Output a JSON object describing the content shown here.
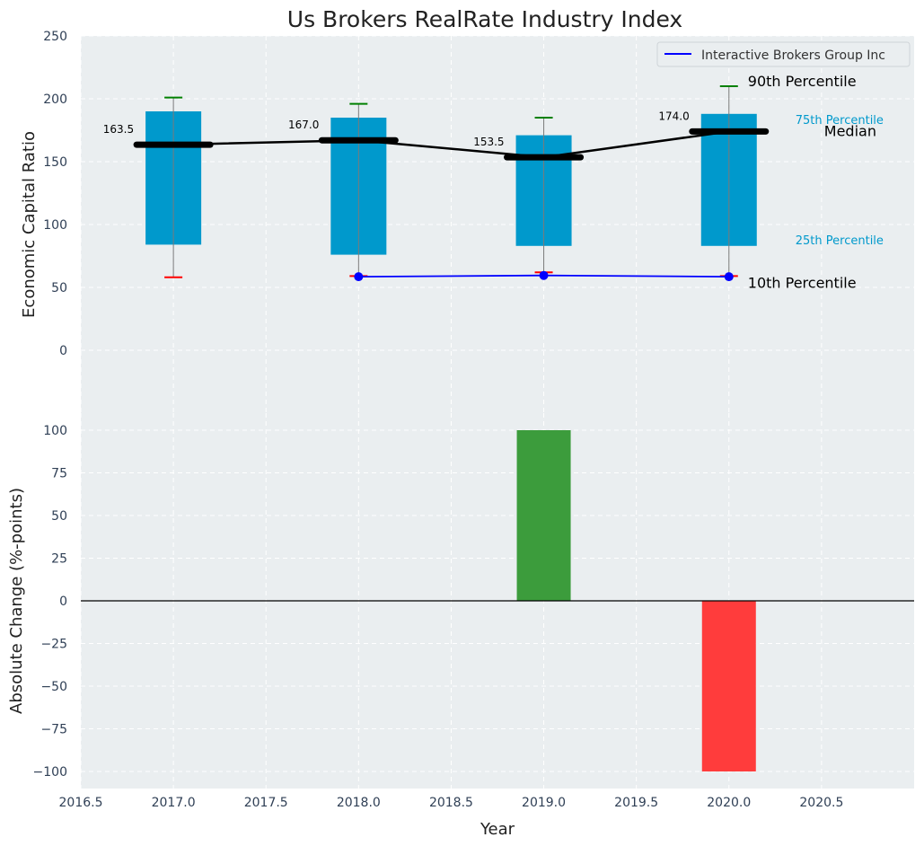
{
  "title": "Us Brokers RealRate Industry Index",
  "colors": {
    "panel_bg": "#eaeef0",
    "box": "#0099cc",
    "median": "#000000",
    "company": "#0000ff",
    "whisker_top": "#008000",
    "whisker_bottom": "#ff0000",
    "positive": "#3c9c3c",
    "negative": "#ff3c3c",
    "percentile_text": "#0099cc"
  },
  "chart_data": [
    {
      "type": "box",
      "ylabel": "Economic Capital Ratio",
      "ylim": [
        -50,
        250
      ],
      "yticks": [
        0,
        50,
        100,
        150,
        200,
        250
      ],
      "xlim": [
        2016.5,
        2021.0
      ],
      "grid": true,
      "legend_position": "top-right",
      "years": [
        2017,
        2018,
        2019,
        2020
      ],
      "p10": [
        58,
        59,
        62,
        59
      ],
      "p25": [
        84,
        76,
        83,
        83
      ],
      "median": [
        163.5,
        167.0,
        153.5,
        174.0
      ],
      "p75": [
        190,
        185,
        171,
        188
      ],
      "p90": [
        201,
        196,
        185,
        210
      ],
      "median_labels": [
        "163.5",
        "167.0",
        "153.5",
        "174.0"
      ],
      "company_series": {
        "name": "Interactive Brokers Group Inc",
        "x": [
          2018,
          2019,
          2020
        ],
        "y": [
          58.5,
          59.5,
          58.5
        ]
      },
      "annotations": {
        "p90": "90th Percentile",
        "p75": "75th Percentile",
        "median": "Median",
        "p25": "25th Percentile",
        "p10": "10th Percentile"
      }
    },
    {
      "type": "bar",
      "ylabel": "Absolute Change (%-points)",
      "xlabel": "Year",
      "ylim": [
        -110,
        110
      ],
      "yticks": [
        -100,
        -75,
        -50,
        -25,
        0,
        25,
        50,
        75,
        100
      ],
      "ytick_labels": [
        "−100",
        "−75",
        "−50",
        "−25",
        "0",
        "25",
        "50",
        "75",
        "100"
      ],
      "xlim": [
        2016.5,
        2021.0
      ],
      "xticks": [
        2016.5,
        2017.0,
        2017.5,
        2018.0,
        2018.5,
        2019.0,
        2019.5,
        2020.0,
        2020.5
      ],
      "xtick_labels": [
        "2016.5",
        "2017.0",
        "2017.5",
        "2018.0",
        "2018.5",
        "2019.0",
        "2019.5",
        "2020.0",
        "2020.5"
      ],
      "grid": true,
      "x": [
        2019,
        2020
      ],
      "values": [
        100,
        -100
      ]
    }
  ]
}
